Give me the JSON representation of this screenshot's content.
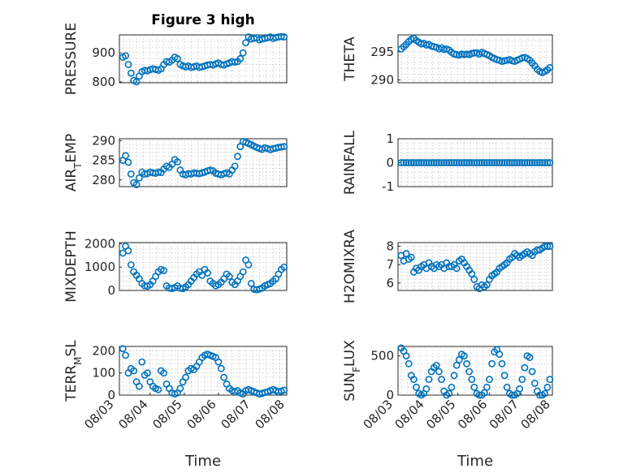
{
  "chart_data": [
    {
      "type": "scatter",
      "title": "Figure 3 high",
      "ylabel": "PRESSURE",
      "ylim": [
        797,
        962
      ],
      "yticks": [
        800,
        900
      ],
      "ytick_labels": [
        "800",
        "900"
      ],
      "xlim": [
        0.1,
        5.0
      ],
      "x": [
        0.2,
        0.28,
        0.36,
        0.44,
        0.52,
        0.6,
        0.68,
        0.76,
        0.84,
        0.92,
        1.0,
        1.08,
        1.16,
        1.24,
        1.32,
        1.4,
        1.48,
        1.56,
        1.64,
        1.72,
        1.8,
        1.88,
        1.96,
        2.04,
        2.12,
        2.2,
        2.28,
        2.36,
        2.44,
        2.52,
        2.6,
        2.68,
        2.76,
        2.84,
        2.92,
        3.0,
        3.08,
        3.16,
        3.24,
        3.32,
        3.4,
        3.48,
        3.56,
        3.64,
        3.72,
        3.8,
        3.88,
        3.96,
        4.04,
        4.12,
        4.2,
        4.28,
        4.36,
        4.44,
        4.52,
        4.6,
        4.68,
        4.76,
        4.84,
        4.92
      ],
      "y": [
        885,
        890,
        860,
        830,
        805,
        800,
        820,
        835,
        840,
        838,
        842,
        845,
        843,
        840,
        845,
        860,
        870,
        868,
        875,
        885,
        880,
        860,
        855,
        852,
        855,
        850,
        852,
        855,
        850,
        852,
        855,
        858,
        860,
        858,
        862,
        865,
        860,
        858,
        862,
        865,
        870,
        868,
        870,
        880,
        900,
        935,
        955,
        948,
        950,
        952,
        945,
        948,
        950,
        952,
        955,
        950,
        953,
        955,
        956,
        955
      ]
    },
    {
      "type": "scatter",
      "ylabel": "THETA",
      "ylim": [
        289.5,
        298
      ],
      "yticks": [
        290,
        295
      ],
      "ytick_labels": [
        "290",
        "295"
      ],
      "xlim": [
        0.1,
        5.0
      ],
      "x": [
        0.2,
        0.28,
        0.36,
        0.44,
        0.52,
        0.6,
        0.68,
        0.76,
        0.84,
        0.92,
        1.0,
        1.08,
        1.16,
        1.24,
        1.32,
        1.4,
        1.48,
        1.56,
        1.64,
        1.72,
        1.8,
        1.88,
        1.96,
        2.04,
        2.12,
        2.2,
        2.28,
        2.36,
        2.44,
        2.52,
        2.6,
        2.68,
        2.76,
        2.84,
        2.92,
        3.0,
        3.08,
        3.16,
        3.24,
        3.32,
        3.4,
        3.48,
        3.56,
        3.64,
        3.72,
        3.8,
        3.88,
        3.96,
        4.04,
        4.12,
        4.2,
        4.28,
        4.36,
        4.44,
        4.52,
        4.6,
        4.68,
        4.76,
        4.84,
        4.92
      ],
      "y": [
        295.5,
        295.9,
        296.3,
        296.8,
        297.2,
        297.4,
        297.0,
        296.7,
        296.4,
        296.5,
        296.2,
        296.3,
        296.0,
        295.9,
        295.8,
        295.5,
        295.7,
        295.4,
        295.5,
        295.3,
        294.9,
        294.6,
        294.5,
        294.4,
        294.6,
        294.5,
        294.6,
        294.5,
        294.7,
        294.8,
        294.8,
        294.6,
        294.9,
        294.7,
        294.5,
        294.3,
        294.0,
        293.8,
        293.6,
        293.5,
        293.3,
        293.4,
        293.5,
        293.6,
        293.4,
        293.3,
        293.5,
        293.7,
        293.9,
        294.0,
        293.8,
        293.5,
        293.0,
        292.5,
        291.9,
        291.5,
        291.3,
        291.5,
        291.8,
        292.2
      ]
    },
    {
      "type": "scatter",
      "ylabel": "AIR_TEMP",
      "ylim": [
        278.3,
        290.5
      ],
      "yticks": [
        280,
        285,
        290
      ],
      "ytick_labels": [
        "280",
        "285",
        "290"
      ],
      "xlim": [
        0.1,
        5.0
      ],
      "x": [
        0.2,
        0.28,
        0.36,
        0.44,
        0.52,
        0.6,
        0.68,
        0.76,
        0.84,
        0.92,
        1.0,
        1.08,
        1.16,
        1.24,
        1.32,
        1.4,
        1.48,
        1.56,
        1.64,
        1.72,
        1.8,
        1.88,
        1.96,
        2.04,
        2.12,
        2.2,
        2.28,
        2.36,
        2.44,
        2.52,
        2.6,
        2.68,
        2.76,
        2.84,
        2.92,
        3.0,
        3.08,
        3.16,
        3.24,
        3.32,
        3.4,
        3.48,
        3.56,
        3.64,
        3.72,
        3.8,
        3.88,
        3.96,
        4.04,
        4.12,
        4.2,
        4.28,
        4.36,
        4.44,
        4.52,
        4.6,
        4.68,
        4.76,
        4.84,
        4.92
      ],
      "y": [
        285.0,
        286.2,
        284.5,
        281.5,
        279.3,
        278.8,
        280.5,
        282.0,
        281.5,
        281.6,
        282.0,
        281.8,
        281.7,
        282.0,
        281.9,
        282.8,
        283.5,
        283.2,
        284.0,
        285.2,
        284.6,
        282.5,
        281.5,
        281.3,
        281.6,
        281.5,
        281.8,
        281.7,
        281.6,
        281.8,
        282.0,
        282.3,
        282.5,
        282.3,
        281.7,
        281.5,
        281.3,
        281.6,
        281.8,
        281.5,
        282.5,
        283.5,
        286.0,
        288.5,
        289.8,
        289.6,
        289.3,
        289.0,
        288.6,
        288.3,
        288.0,
        287.8,
        288.2,
        288.0,
        287.7,
        288.0,
        288.1,
        288.3,
        288.4,
        288.5
      ]
    },
    {
      "type": "scatter",
      "ylabel": "RAINFALL",
      "ylim": [
        -1,
        1
      ],
      "yticks": [
        -1,
        0,
        1
      ],
      "ytick_labels": [
        "-1",
        "0",
        "1"
      ],
      "xlim": [
        0.1,
        5.0
      ],
      "x": [
        0.2,
        0.28,
        0.36,
        0.44,
        0.52,
        0.6,
        0.68,
        0.76,
        0.84,
        0.92,
        1.0,
        1.08,
        1.16,
        1.24,
        1.32,
        1.4,
        1.48,
        1.56,
        1.64,
        1.72,
        1.8,
        1.88,
        1.96,
        2.04,
        2.12,
        2.2,
        2.28,
        2.36,
        2.44,
        2.52,
        2.6,
        2.68,
        2.76,
        2.84,
        2.92,
        3.0,
        3.08,
        3.16,
        3.24,
        3.32,
        3.4,
        3.48,
        3.56,
        3.64,
        3.72,
        3.8,
        3.88,
        3.96,
        4.04,
        4.12,
        4.2,
        4.28,
        4.36,
        4.44,
        4.52,
        4.6,
        4.68,
        4.76,
        4.84,
        4.92
      ],
      "y": [
        0,
        0,
        0,
        0,
        0,
        0,
        0,
        0,
        0,
        0,
        0,
        0,
        0,
        0,
        0,
        0,
        0,
        0,
        0,
        0,
        0,
        0,
        0,
        0,
        0,
        0,
        0,
        0,
        0,
        0,
        0,
        0,
        0,
        0,
        0,
        0,
        0,
        0,
        0,
        0,
        0,
        0,
        0,
        0,
        0,
        0,
        0,
        0,
        0,
        0,
        0,
        0,
        0,
        0,
        0,
        0,
        0,
        0,
        0,
        0
      ]
    },
    {
      "type": "scatter",
      "ylabel": "MIXDEPTH",
      "ylim": [
        0,
        2050
      ],
      "yticks": [
        0,
        1000,
        2000
      ],
      "ytick_labels": [
        "0",
        "1000",
        "2000"
      ],
      "xlim": [
        0.1,
        5.0
      ],
      "x": [
        0.2,
        0.28,
        0.36,
        0.44,
        0.52,
        0.6,
        0.68,
        0.76,
        0.84,
        0.92,
        1.0,
        1.08,
        1.16,
        1.24,
        1.32,
        1.4,
        1.48,
        1.56,
        1.64,
        1.72,
        1.8,
        1.88,
        1.96,
        2.04,
        2.12,
        2.2,
        2.28,
        2.36,
        2.44,
        2.52,
        2.6,
        2.68,
        2.76,
        2.84,
        2.92,
        3.0,
        3.08,
        3.16,
        3.24,
        3.32,
        3.4,
        3.48,
        3.56,
        3.64,
        3.72,
        3.8,
        3.88,
        3.96,
        4.04,
        4.12,
        4.2,
        4.28,
        4.36,
        4.44,
        4.52,
        4.6,
        4.68,
        4.76,
        4.84,
        4.92
      ],
      "y": [
        1600,
        1900,
        1700,
        1100,
        800,
        650,
        500,
        300,
        200,
        180,
        250,
        400,
        600,
        800,
        900,
        850,
        200,
        100,
        80,
        120,
        200,
        100,
        80,
        150,
        250,
        400,
        550,
        700,
        800,
        650,
        900,
        750,
        400,
        300,
        200,
        250,
        350,
        500,
        700,
        600,
        350,
        250,
        400,
        600,
        800,
        1300,
        1100,
        300,
        50,
        30,
        60,
        100,
        200,
        250,
        300,
        400,
        500,
        700,
        900,
        1000
      ]
    },
    {
      "type": "scatter",
      "ylabel": "H2OMIXRA",
      "ylim": [
        5.6,
        8.2
      ],
      "yticks": [
        6,
        7,
        8
      ],
      "ytick_labels": [
        "6",
        "7",
        "8"
      ],
      "xlim": [
        0.1,
        5.0
      ],
      "x": [
        0.2,
        0.28,
        0.36,
        0.44,
        0.52,
        0.6,
        0.68,
        0.76,
        0.84,
        0.92,
        1.0,
        1.08,
        1.16,
        1.24,
        1.32,
        1.4,
        1.48,
        1.56,
        1.64,
        1.72,
        1.8,
        1.88,
        1.96,
        2.04,
        2.12,
        2.2,
        2.28,
        2.36,
        2.44,
        2.52,
        2.6,
        2.68,
        2.76,
        2.84,
        2.92,
        3.0,
        3.08,
        3.16,
        3.24,
        3.32,
        3.4,
        3.48,
        3.56,
        3.64,
        3.72,
        3.8,
        3.88,
        3.96,
        4.04,
        4.12,
        4.2,
        4.28,
        4.36,
        4.44,
        4.52,
        4.6,
        4.68,
        4.76,
        4.84,
        4.92
      ],
      "y": [
        7.5,
        7.2,
        7.6,
        7.3,
        7.4,
        6.6,
        6.8,
        6.7,
        6.9,
        7.0,
        6.8,
        7.1,
        6.9,
        6.8,
        7.0,
        6.9,
        7.0,
        6.8,
        7.1,
        6.9,
        6.9,
        7.0,
        6.8,
        7.2,
        7.3,
        7.1,
        6.9,
        6.7,
        6.5,
        6.2,
        5.8,
        5.7,
        5.9,
        5.8,
        5.9,
        6.2,
        6.4,
        6.5,
        6.6,
        6.8,
        6.9,
        7.0,
        7.1,
        7.3,
        7.4,
        7.6,
        7.5,
        7.4,
        7.5,
        7.6,
        7.7,
        7.6,
        7.5,
        7.7,
        7.8,
        7.8,
        7.9,
        8.0,
        8.0,
        8.0
      ]
    },
    {
      "type": "scatter",
      "ylabel": "TERR_MSL",
      "ylim": [
        0,
        220
      ],
      "yticks": [
        0,
        100,
        200
      ],
      "ytick_labels": [
        "0",
        "100",
        "200"
      ],
      "xlim": [
        0.1,
        5.0
      ],
      "xticks": [
        0,
        1,
        2,
        3,
        4,
        5
      ],
      "xtick_labels": [
        "08/03",
        "08/04",
        "08/05",
        "08/06",
        "08/07",
        "08/08"
      ],
      "xlabel": "Time",
      "x": [
        0.2,
        0.28,
        0.36,
        0.44,
        0.52,
        0.6,
        0.68,
        0.76,
        0.84,
        0.92,
        1.0,
        1.08,
        1.16,
        1.24,
        1.32,
        1.4,
        1.48,
        1.56,
        1.64,
        1.72,
        1.8,
        1.88,
        1.96,
        2.04,
        2.12,
        2.2,
        2.28,
        2.36,
        2.44,
        2.52,
        2.6,
        2.68,
        2.76,
        2.84,
        2.92,
        3.0,
        3.08,
        3.16,
        3.24,
        3.32,
        3.4,
        3.48,
        3.56,
        3.64,
        3.72,
        3.8,
        3.88,
        3.96,
        4.04,
        4.12,
        4.2,
        4.28,
        4.36,
        4.44,
        4.52,
        4.6,
        4.68,
        4.76,
        4.84,
        4.92
      ],
      "y": [
        210,
        180,
        100,
        120,
        110,
        60,
        40,
        150,
        90,
        100,
        60,
        40,
        30,
        25,
        110,
        100,
        50,
        30,
        10,
        5,
        10,
        30,
        60,
        80,
        110,
        120,
        115,
        130,
        150,
        170,
        180,
        185,
        180,
        175,
        170,
        150,
        120,
        80,
        50,
        30,
        20,
        15,
        20,
        10,
        5,
        20,
        25,
        20,
        15,
        10,
        5,
        8,
        12,
        15,
        20,
        25,
        20,
        15,
        18,
        22
      ]
    },
    {
      "type": "scatter",
      "ylabel": "SUN_FLUX",
      "ylim": [
        0,
        620
      ],
      "yticks": [
        0,
        500
      ],
      "ytick_labels": [
        "0",
        "500"
      ],
      "xlim": [
        0.1,
        5.0
      ],
      "xticks": [
        0,
        1,
        2,
        3,
        4,
        5
      ],
      "xtick_labels": [
        "08/03",
        "08/04",
        "08/05",
        "08/06",
        "08/07",
        "08/08"
      ],
      "xlabel": "Time",
      "x": [
        0.2,
        0.28,
        0.36,
        0.44,
        0.52,
        0.6,
        0.68,
        0.76,
        0.84,
        0.92,
        1.0,
        1.08,
        1.16,
        1.24,
        1.32,
        1.4,
        1.48,
        1.56,
        1.64,
        1.72,
        1.8,
        1.88,
        1.96,
        2.04,
        2.12,
        2.2,
        2.28,
        2.36,
        2.44,
        2.52,
        2.6,
        2.68,
        2.76,
        2.84,
        2.92,
        3.0,
        3.08,
        3.16,
        3.24,
        3.32,
        3.4,
        3.48,
        3.56,
        3.64,
        3.72,
        3.8,
        3.88,
        3.96,
        4.04,
        4.12,
        4.2,
        4.28,
        4.36,
        4.44,
        4.52,
        4.6,
        4.68,
        4.76,
        4.84,
        4.92
      ],
      "y": [
        600,
        560,
        500,
        400,
        250,
        200,
        100,
        20,
        0,
        20,
        80,
        200,
        300,
        350,
        380,
        300,
        200,
        50,
        0,
        20,
        100,
        250,
        380,
        450,
        520,
        500,
        400,
        300,
        200,
        100,
        20,
        0,
        0,
        30,
        100,
        200,
        400,
        550,
        580,
        520,
        400,
        250,
        100,
        20,
        0,
        0,
        20,
        80,
        200,
        350,
        500,
        480,
        300,
        150,
        50,
        0,
        0,
        20,
        100,
        200
      ]
    }
  ]
}
